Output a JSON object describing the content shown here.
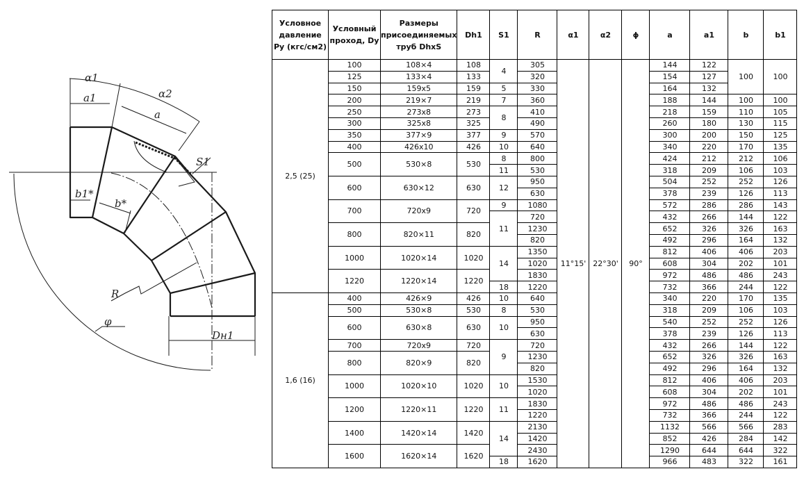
{
  "drawing": {
    "labels": {
      "alpha1": "α1",
      "alpha2": "α2",
      "a1": "a1",
      "a": "a",
      "b1": "b1*",
      "b": "b*",
      "s1": "S1",
      "r": "R",
      "phi": "φ",
      "dh1": "Dн1"
    }
  },
  "table": {
    "headers": [
      "Условное давление Ру (кгс/см2)",
      "Условный проход, Dy",
      "Размеры присоединяемых труб DhxS",
      "Dh1",
      "S1",
      "R",
      "α1",
      "α2",
      "ϕ",
      "a",
      "a1",
      "b",
      "b1"
    ],
    "alpha1": "11°15'",
    "alpha2": "22°30'",
    "phi": "90°",
    "groups": [
      {
        "pressure": "2,5 (25)",
        "dy": [
          [
            "100",
            1
          ],
          [
            "125",
            1
          ],
          [
            "150",
            1
          ],
          [
            "200",
            1
          ],
          [
            "250",
            1
          ],
          [
            "300",
            1
          ],
          [
            "350",
            1
          ],
          [
            "400",
            1
          ],
          [
            "500",
            2
          ],
          [
            "600",
            2
          ],
          [
            "700",
            2
          ],
          [
            "800",
            2
          ],
          [
            "1000",
            2
          ],
          [
            "1220",
            2
          ]
        ],
        "pipe": [
          [
            "108×4",
            1
          ],
          [
            "133×4",
            1
          ],
          [
            "159x5",
            1
          ],
          [
            "219×7",
            1
          ],
          [
            "273x8",
            1
          ],
          [
            "325x8",
            1
          ],
          [
            "377×9",
            1
          ],
          [
            "426x10",
            1
          ],
          [
            "530×8",
            2
          ],
          [
            "630×12",
            2
          ],
          [
            "720x9",
            2
          ],
          [
            "820×11",
            2
          ],
          [
            "1020×14",
            2
          ],
          [
            "1220×14",
            2
          ]
        ],
        "dh1": [
          [
            "108",
            1
          ],
          [
            "133",
            1
          ],
          [
            "159",
            1
          ],
          [
            "219",
            1
          ],
          [
            "273",
            1
          ],
          [
            "325",
            1
          ],
          [
            "377",
            1
          ],
          [
            "426",
            1
          ],
          [
            "530",
            2
          ],
          [
            "630",
            2
          ],
          [
            "720",
            2
          ],
          [
            "820",
            2
          ],
          [
            "1020",
            2
          ],
          [
            "1220",
            2
          ]
        ],
        "s1": [
          [
            "4",
            2
          ],
          [
            "5",
            1
          ],
          [
            "7",
            1
          ],
          [
            "8",
            2
          ],
          [
            "9",
            1
          ],
          [
            "10",
            1
          ],
          [
            "8",
            1
          ],
          [
            "11",
            1
          ],
          [
            "12",
            2
          ],
          [
            "9",
            1
          ],
          [
            "11",
            3
          ],
          [
            "14",
            3
          ],
          [
            "18",
            1
          ]
        ],
        "r": [
          [
            "305",
            1
          ],
          [
            "320",
            1
          ],
          [
            "330",
            1
          ],
          [
            "360",
            1
          ],
          [
            "410",
            1
          ],
          [
            "490",
            1
          ],
          [
            "570",
            1
          ],
          [
            "640",
            1
          ],
          [
            "800",
            1
          ],
          [
            "530",
            1
          ],
          [
            "950",
            1
          ],
          [
            "630",
            1
          ],
          [
            "1080",
            1
          ],
          [
            "720",
            1
          ],
          [
            "1230",
            1
          ],
          [
            "820",
            1
          ],
          [
            "1350",
            1
          ],
          [
            "1020",
            1
          ],
          [
            "1830",
            1
          ],
          [
            "1220",
            1
          ]
        ],
        "a": [
          [
            "144",
            1
          ],
          [
            "154",
            1
          ],
          [
            "164",
            1
          ],
          [
            "188",
            1
          ],
          [
            "218",
            1
          ],
          [
            "260",
            1
          ],
          [
            "300",
            1
          ],
          [
            "340",
            1
          ],
          [
            "424",
            1
          ],
          [
            "318",
            1
          ],
          [
            "504",
            1
          ],
          [
            "378",
            1
          ],
          [
            "572",
            1
          ],
          [
            "432",
            1
          ],
          [
            "652",
            1
          ],
          [
            "492",
            1
          ],
          [
            "812",
            1
          ],
          [
            "608",
            1
          ],
          [
            "972",
            1
          ],
          [
            "732",
            1
          ]
        ],
        "a1": [
          [
            "122",
            1
          ],
          [
            "127",
            1
          ],
          [
            "132",
            1
          ],
          [
            "144",
            1
          ],
          [
            "159",
            1
          ],
          [
            "180",
            1
          ],
          [
            "200",
            1
          ],
          [
            "220",
            1
          ],
          [
            "212",
            1
          ],
          [
            "209",
            1
          ],
          [
            "252",
            1
          ],
          [
            "239",
            1
          ],
          [
            "286",
            1
          ],
          [
            "266",
            1
          ],
          [
            "326",
            1
          ],
          [
            "296",
            1
          ],
          [
            "406",
            1
          ],
          [
            "304",
            1
          ],
          [
            "486",
            1
          ],
          [
            "366",
            1
          ]
        ],
        "b": [
          [
            "100",
            3
          ],
          [
            "100",
            1
          ],
          [
            "110",
            1
          ],
          [
            "130",
            1
          ],
          [
            "150",
            1
          ],
          [
            "170",
            1
          ],
          [
            "212",
            1
          ],
          [
            "106",
            1
          ],
          [
            "252",
            1
          ],
          [
            "126",
            1
          ],
          [
            "286",
            1
          ],
          [
            "144",
            1
          ],
          [
            "326",
            1
          ],
          [
            "164",
            1
          ],
          [
            "406",
            1
          ],
          [
            "202",
            1
          ],
          [
            "486",
            1
          ],
          [
            "244",
            1
          ]
        ],
        "b1": [
          [
            "100",
            3
          ],
          [
            "100",
            1
          ],
          [
            "105",
            1
          ],
          [
            "115",
            1
          ],
          [
            "125",
            1
          ],
          [
            "135",
            1
          ],
          [
            "106",
            1
          ],
          [
            "103",
            1
          ],
          [
            "126",
            1
          ],
          [
            "113",
            1
          ],
          [
            "143",
            1
          ],
          [
            "122",
            1
          ],
          [
            "163",
            1
          ],
          [
            "132",
            1
          ],
          [
            "203",
            1
          ],
          [
            "101",
            1
          ],
          [
            "243",
            1
          ],
          [
            "122",
            1
          ]
        ]
      },
      {
        "pressure": "1,6 (16)",
        "dy": [
          [
            "400",
            1
          ],
          [
            "500",
            1
          ],
          [
            "600",
            2
          ],
          [
            "700",
            1
          ],
          [
            "800",
            2
          ],
          [
            "1000",
            2
          ],
          [
            "1200",
            2
          ],
          [
            "1400",
            2
          ],
          [
            "1600",
            2
          ]
        ],
        "pipe": [
          [
            "426×9",
            1
          ],
          [
            "530×8",
            1
          ],
          [
            "630×8",
            2
          ],
          [
            "720x9",
            1
          ],
          [
            "820×9",
            2
          ],
          [
            "1020×10",
            2
          ],
          [
            "1220×11",
            2
          ],
          [
            "1420×14",
            2
          ],
          [
            "1620×14",
            2
          ]
        ],
        "dh1": [
          [
            "426",
            1
          ],
          [
            "530",
            1
          ],
          [
            "630",
            2
          ],
          [
            "720",
            1
          ],
          [
            "820",
            2
          ],
          [
            "1020",
            2
          ],
          [
            "1220",
            2
          ],
          [
            "1420",
            2
          ],
          [
            "1620",
            2
          ]
        ],
        "s1": [
          [
            "10",
            1
          ],
          [
            "8",
            1
          ],
          [
            "10",
            2
          ],
          [
            "9",
            3
          ],
          [
            "10",
            2
          ],
          [
            "11",
            2
          ],
          [
            "14",
            3
          ],
          [
            "18",
            1
          ]
        ],
        "r": [
          [
            "640",
            1
          ],
          [
            "530",
            1
          ],
          [
            "950",
            1
          ],
          [
            "630",
            1
          ],
          [
            "720",
            1
          ],
          [
            "1230",
            1
          ],
          [
            "820",
            1
          ],
          [
            "1530",
            1
          ],
          [
            "1020",
            1
          ],
          [
            "1830",
            1
          ],
          [
            "1220",
            1
          ],
          [
            "2130",
            1
          ],
          [
            "1420",
            1
          ],
          [
            "2430",
            1
          ],
          [
            "1620",
            1
          ]
        ],
        "a": [
          [
            "340",
            1
          ],
          [
            "318",
            1
          ],
          [
            "540",
            1
          ],
          [
            "378",
            1
          ],
          [
            "432",
            1
          ],
          [
            "652",
            1
          ],
          [
            "492",
            1
          ],
          [
            "812",
            1
          ],
          [
            "608",
            1
          ],
          [
            "972",
            1
          ],
          [
            "732",
            1
          ],
          [
            "1132",
            1
          ],
          [
            "852",
            1
          ],
          [
            "1290",
            1
          ],
          [
            "966",
            1
          ]
        ],
        "a1": [
          [
            "220",
            1
          ],
          [
            "209",
            1
          ],
          [
            "252",
            1
          ],
          [
            "239",
            1
          ],
          [
            "266",
            1
          ],
          [
            "326",
            1
          ],
          [
            "296",
            1
          ],
          [
            "406",
            1
          ],
          [
            "304",
            1
          ],
          [
            "486",
            1
          ],
          [
            "366",
            1
          ],
          [
            "566",
            1
          ],
          [
            "426",
            1
          ],
          [
            "644",
            1
          ],
          [
            "483",
            1
          ]
        ],
        "b": [
          [
            "170",
            1
          ],
          [
            "106",
            1
          ],
          [
            "252",
            1
          ],
          [
            "126",
            1
          ],
          [
            "144",
            1
          ],
          [
            "326",
            1
          ],
          [
            "164",
            1
          ],
          [
            "406",
            1
          ],
          [
            "202",
            1
          ],
          [
            "486",
            1
          ],
          [
            "244",
            1
          ],
          [
            "566",
            1
          ],
          [
            "284",
            1
          ],
          [
            "644",
            1
          ],
          [
            "322",
            1
          ]
        ],
        "b1": [
          [
            "135",
            1
          ],
          [
            "103",
            1
          ],
          [
            "126",
            1
          ],
          [
            "113",
            1
          ],
          [
            "122",
            1
          ],
          [
            "163",
            1
          ],
          [
            "132",
            1
          ],
          [
            "203",
            1
          ],
          [
            "101",
            1
          ],
          [
            "243",
            1
          ],
          [
            "122",
            1
          ],
          [
            "283",
            1
          ],
          [
            "142",
            1
          ],
          [
            "322",
            1
          ],
          [
            "161",
            1
          ]
        ]
      }
    ]
  }
}
